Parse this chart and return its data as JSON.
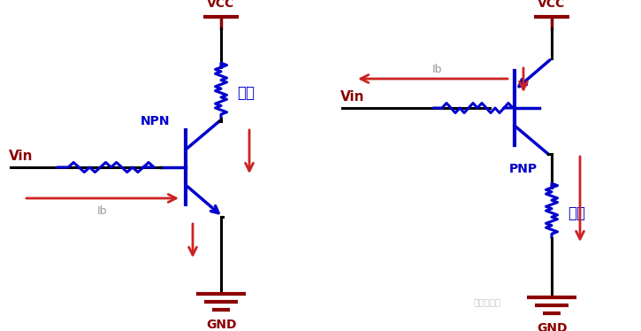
{
  "bg_color": "#ffffff",
  "black": "#000000",
  "blue": "#0000cc",
  "red": "#cc2222",
  "dark_red": "#8b0000",
  "gray": "#999999",
  "fig_width": 7.25,
  "fig_height": 3.74,
  "npn_label": "NPN",
  "pnp_label": "PNP",
  "vcc_label": "VCC",
  "gnd_label": "GND",
  "vin_label": "Vin",
  "ib_label": "Ib",
  "load_label": "负载",
  "watermark": "硬件攻城狮"
}
